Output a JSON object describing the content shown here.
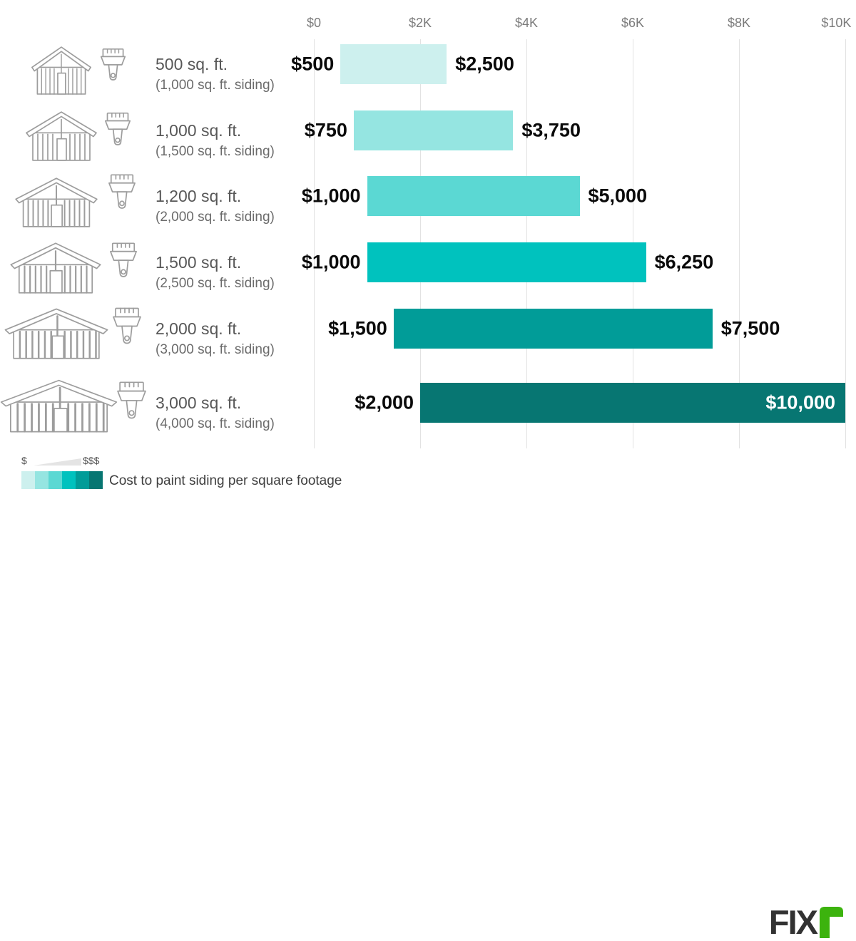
{
  "chart_data": {
    "type": "bar",
    "orientation": "horizontal-range",
    "title": "Cost to paint siding per square footage",
    "x_axis": {
      "ticks": [
        "$0",
        "$2K",
        "$4K",
        "$6K",
        "$8K",
        "$10K"
      ],
      "tick_values": [
        0,
        2000,
        4000,
        6000,
        8000,
        10000
      ],
      "range": [
        0,
        10000
      ],
      "grid": true,
      "position": "top"
    },
    "rows": [
      {
        "label": "500 sq. ft.",
        "sublabel": "(1,000 sq. ft. siding)",
        "min": 500,
        "max": 2500,
        "min_label": "$500",
        "max_label": "$2,500",
        "color": "#cdf0ee",
        "max_label_inside": false
      },
      {
        "label": "1,000 sq. ft.",
        "sublabel": "(1,500 sq. ft. siding)",
        "min": 750,
        "max": 3750,
        "min_label": "$750",
        "max_label": "$3,750",
        "color": "#95e5e1",
        "max_label_inside": false
      },
      {
        "label": "1,200 sq. ft.",
        "sublabel": "(2,000 sq. ft. siding)",
        "min": 1000,
        "max": 5000,
        "min_label": "$1,000",
        "max_label": "$5,000",
        "color": "#5bd8d3",
        "max_label_inside": false
      },
      {
        "label": "1,500 sq. ft.",
        "sublabel": "(2,500 sq. ft. siding)",
        "min": 1000,
        "max": 6250,
        "min_label": "$1,000",
        "max_label": "$6,250",
        "color": "#00c2be",
        "max_label_inside": false
      },
      {
        "label": "2,000 sq. ft.",
        "sublabel": "(3,000 sq. ft. siding)",
        "min": 1500,
        "max": 7500,
        "min_label": "$1,500",
        "max_label": "$7,500",
        "color": "#019c98",
        "max_label_inside": false
      },
      {
        "label": "3,000 sq. ft.",
        "sublabel": "(4,000 sq. ft. siding)",
        "min": 2000,
        "max": 10000,
        "min_label": "$2,000",
        "max_label": "$10,000",
        "color": "#077672",
        "max_label_inside": true
      }
    ]
  },
  "legend": {
    "low": "$",
    "high": "$$$",
    "swatches": [
      "#cdf0ee",
      "#95e5e1",
      "#5bd8d3",
      "#00c2be",
      "#019c98",
      "#077672"
    ],
    "caption": "Cost to paint siding per square footage"
  },
  "logo": {
    "text": "FIX",
    "text_color": "#323232",
    "green": "#3cb30e"
  }
}
